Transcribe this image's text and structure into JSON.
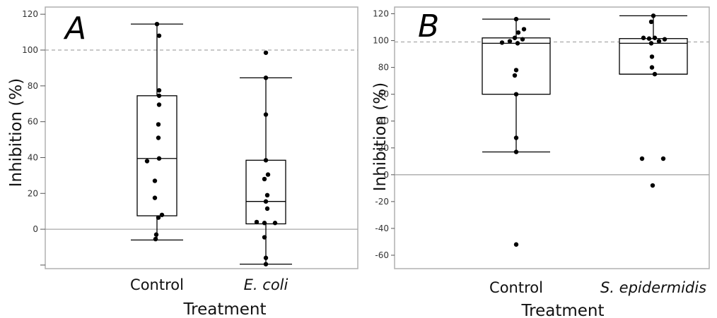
{
  "chart_data": [
    {
      "type": "box",
      "panel_label": "A",
      "xlabel": "Treatment",
      "ylabel": "Inhibition (%)",
      "ylim": [
        -22,
        124
      ],
      "yticks": [
        0,
        20,
        40,
        60,
        80,
        100,
        120
      ],
      "reference_lines": [
        {
          "y": 100,
          "style": "dashed"
        },
        {
          "y": 0,
          "style": "solid"
        }
      ],
      "categories": [
        {
          "label": "Control",
          "italic": false
        },
        {
          "label": "E. coli",
          "italic": true
        }
      ],
      "boxes": [
        {
          "whisker_low": -6,
          "q1": 7.5,
          "median": 39.5,
          "q3": 74.5,
          "whisker_high": 114.5
        },
        {
          "whisker_low": -19.5,
          "q1": 3,
          "median": 15.5,
          "q3": 38.5,
          "whisker_high": 84.5
        }
      ],
      "points": [
        [
          114.5,
          108,
          77.5,
          74.5,
          69.5,
          58.5,
          51,
          39.5,
          38,
          27,
          17.5,
          8,
          6.5,
          -3,
          -5.5
        ],
        [
          98.5,
          84.5,
          64,
          38.5,
          30.5,
          28,
          19,
          15.5,
          11.5,
          4,
          3.5,
          3.5,
          -4.5,
          -16,
          -19.5
        ]
      ]
    },
    {
      "type": "box",
      "panel_label": "B",
      "xlabel": "Treatment",
      "ylabel": "Inhibition (%)",
      "ylim": [
        -70,
        125
      ],
      "yticks": [
        -60,
        -40,
        -20,
        0,
        20,
        40,
        60,
        80,
        100,
        120
      ],
      "reference_lines": [
        {
          "y": 99,
          "style": "dashed"
        },
        {
          "y": 0,
          "style": "solid"
        }
      ],
      "categories": [
        {
          "label": "Control",
          "italic": false
        },
        {
          "label": "S. epidermidis",
          "italic": true
        }
      ],
      "boxes": [
        {
          "whisker_low": 17,
          "q1": 60,
          "median": 98,
          "q3": 102,
          "whisker_high": 116
        },
        {
          "whisker_low": 75,
          "q1": 75,
          "median": 98,
          "q3": 101.5,
          "whisker_high": 118.5
        }
      ],
      "points": [
        [
          116,
          108.5,
          106,
          102,
          101,
          99.5,
          98.5,
          98,
          78,
          74,
          60,
          27.5,
          17,
          -52
        ],
        [
          118.5,
          114,
          102,
          102,
          101.5,
          101,
          99.5,
          98,
          88,
          80,
          75,
          12,
          12,
          -8
        ]
      ]
    }
  ]
}
